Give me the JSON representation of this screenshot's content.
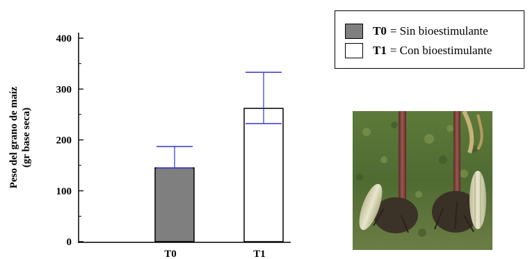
{
  "chart_data": {
    "type": "bar",
    "categories": [
      "T0",
      "T1"
    ],
    "values": [
      145,
      262
    ],
    "error_upper": [
      187,
      333
    ],
    "error_lower": [
      145,
      232
    ],
    "ylabel_lines": [
      "Peso del grano de maíz",
      "(gr base seca)"
    ],
    "ylim": [
      0,
      400
    ],
    "yticks": [
      "0",
      "100",
      "200",
      "300",
      "400"
    ],
    "bar_colors": [
      "#7f7f7f",
      "#ffffff"
    ],
    "error_color": "#3333cc",
    "grid": false,
    "legend_position": "top-right",
    "legend": [
      {
        "key": "T0",
        "text": "= Sin bioestimulante",
        "color": "#7f7f7f"
      },
      {
        "key": "T1",
        "text": "= Con bioestimulante",
        "color": "#ffffff"
      }
    ]
  },
  "photo": {
    "description_icon": "corn-plants-photo"
  }
}
